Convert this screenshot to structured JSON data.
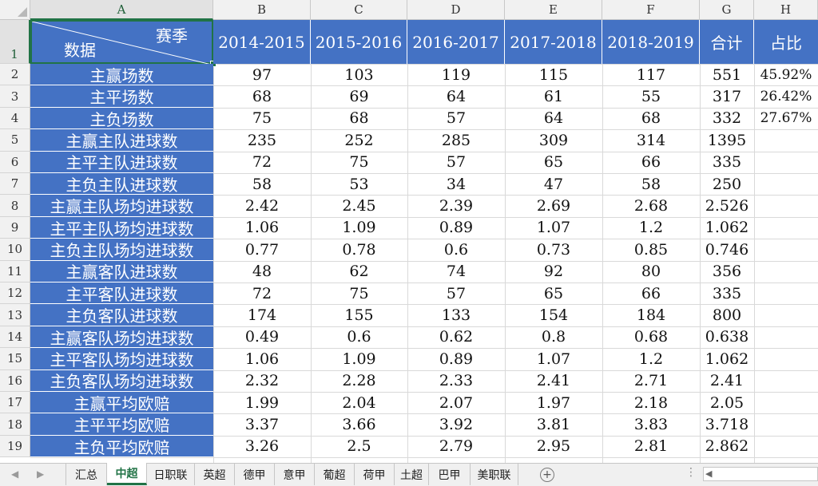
{
  "columns": [
    "A",
    "B",
    "C",
    "D",
    "E",
    "F",
    "G",
    "H"
  ],
  "selected_column": "A",
  "header": {
    "diagonal_top": "赛季",
    "diagonal_bottom": "数据",
    "seasons": [
      "2014-2015",
      "2015-2016",
      "2016-2017",
      "2017-2018",
      "2018-2019"
    ],
    "total": "合计",
    "ratio": "占比"
  },
  "rows": [
    {
      "num": "2",
      "label": "主赢场数",
      "values": [
        "97",
        "103",
        "119",
        "115",
        "117"
      ],
      "total": "551",
      "ratio": "45.92%"
    },
    {
      "num": "3",
      "label": "主平场数",
      "values": [
        "68",
        "69",
        "64",
        "61",
        "55"
      ],
      "total": "317",
      "ratio": "26.42%"
    },
    {
      "num": "4",
      "label": "主负场数",
      "values": [
        "75",
        "68",
        "57",
        "64",
        "68"
      ],
      "total": "332",
      "ratio": "27.67%"
    },
    {
      "num": "5",
      "label": "主赢主队进球数",
      "values": [
        "235",
        "252",
        "285",
        "309",
        "314"
      ],
      "total": "1395",
      "ratio": ""
    },
    {
      "num": "6",
      "label": "主平主队进球数",
      "values": [
        "72",
        "75",
        "57",
        "65",
        "66"
      ],
      "total": "335",
      "ratio": ""
    },
    {
      "num": "7",
      "label": "主负主队进球数",
      "values": [
        "58",
        "53",
        "34",
        "47",
        "58"
      ],
      "total": "250",
      "ratio": ""
    },
    {
      "num": "8",
      "label": "主赢主队场均进球数",
      "values": [
        "2.42",
        "2.45",
        "2.39",
        "2.69",
        "2.68"
      ],
      "total": "2.526",
      "ratio": ""
    },
    {
      "num": "9",
      "label": "主平主队场均进球数",
      "values": [
        "1.06",
        "1.09",
        "0.89",
        "1.07",
        "1.2"
      ],
      "total": "1.062",
      "ratio": ""
    },
    {
      "num": "10",
      "label": "主负主队场均进球数",
      "values": [
        "0.77",
        "0.78",
        "0.6",
        "0.73",
        "0.85"
      ],
      "total": "0.746",
      "ratio": ""
    },
    {
      "num": "11",
      "label": "主赢客队进球数",
      "values": [
        "48",
        "62",
        "74",
        "92",
        "80"
      ],
      "total": "356",
      "ratio": ""
    },
    {
      "num": "12",
      "label": "主平客队进球数",
      "values": [
        "72",
        "75",
        "57",
        "65",
        "66"
      ],
      "total": "335",
      "ratio": ""
    },
    {
      "num": "13",
      "label": "主负客队进球数",
      "values": [
        "174",
        "155",
        "133",
        "154",
        "184"
      ],
      "total": "800",
      "ratio": ""
    },
    {
      "num": "14",
      "label": "主赢客队场均进球数",
      "values": [
        "0.49",
        "0.6",
        "0.62",
        "0.8",
        "0.68"
      ],
      "total": "0.638",
      "ratio": ""
    },
    {
      "num": "15",
      "label": "主平客队场均进球数",
      "values": [
        "1.06",
        "1.09",
        "0.89",
        "1.07",
        "1.2"
      ],
      "total": "1.062",
      "ratio": ""
    },
    {
      "num": "16",
      "label": "主负客队场均进球数",
      "values": [
        "2.32",
        "2.28",
        "2.33",
        "2.41",
        "2.71"
      ],
      "total": "2.41",
      "ratio": ""
    },
    {
      "num": "17",
      "label": "主赢平均欧赔",
      "values": [
        "1.99",
        "2.04",
        "2.07",
        "1.97",
        "2.18"
      ],
      "total": "2.05",
      "ratio": ""
    },
    {
      "num": "18",
      "label": "主平平均欧赔",
      "values": [
        "3.37",
        "3.66",
        "3.92",
        "3.81",
        "3.83"
      ],
      "total": "3.718",
      "ratio": ""
    },
    {
      "num": "19",
      "label": "主负平均欧赔",
      "values": [
        "3.26",
        "2.5",
        "2.79",
        "2.95",
        "2.81"
      ],
      "total": "2.862",
      "ratio": ""
    }
  ],
  "sheet_tabs": [
    "汇总",
    "中超",
    "日职联",
    "英超",
    "德甲",
    "意甲",
    "葡超",
    "荷甲",
    "土超",
    "巴甲",
    "美职联"
  ],
  "active_tab": "中超",
  "colors": {
    "header_blue": "#4472c4",
    "excel_green": "#217346"
  }
}
